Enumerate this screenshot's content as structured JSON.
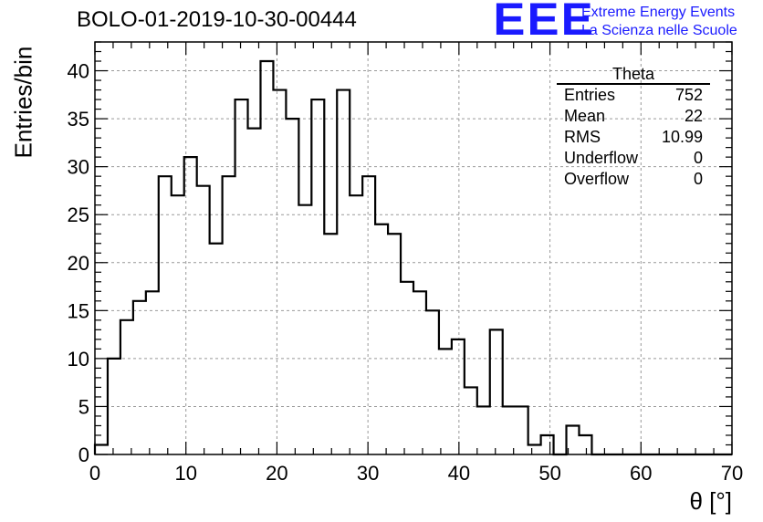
{
  "header": {
    "title": "BOLO-01-2019-10-30-00444",
    "logo_mark": "EEE",
    "logo_line1": "Extreme Energy Events",
    "logo_line2": "La Scienza nelle Scuole"
  },
  "stats": {
    "name": "Theta",
    "rows": [
      {
        "label": "Entries",
        "value": "752"
      },
      {
        "label": "Mean",
        "value": "22"
      },
      {
        "label": "RMS",
        "value": "10.99"
      },
      {
        "label": "Underflow",
        "value": "0"
      },
      {
        "label": "Overflow",
        "value": "0"
      }
    ]
  },
  "chart_data": {
    "type": "bar",
    "title": "BOLO-01-2019-10-30-00444",
    "xlabel": "θ [°]",
    "ylabel": "Entries/bin",
    "xlim": [
      0,
      70
    ],
    "ylim": [
      0,
      43
    ],
    "bin_width": 1.4,
    "xticks": [
      0,
      10,
      20,
      30,
      40,
      50,
      60,
      70
    ],
    "yticks": [
      0,
      5,
      10,
      15,
      20,
      25,
      30,
      35,
      40
    ],
    "grid": true,
    "legend": "top-right stats box",
    "color": "#000000",
    "values": [
      1,
      10,
      14,
      16,
      17,
      29,
      27,
      31,
      28,
      22,
      29,
      37,
      34,
      41,
      38,
      35,
      26,
      37,
      23,
      38,
      27,
      29,
      24,
      23,
      18,
      17,
      15,
      11,
      12,
      7,
      5,
      13,
      5,
      5,
      1,
      2,
      0,
      3,
      2,
      0,
      0,
      0,
      0,
      0,
      0,
      0,
      0,
      0,
      0,
      0
    ]
  }
}
